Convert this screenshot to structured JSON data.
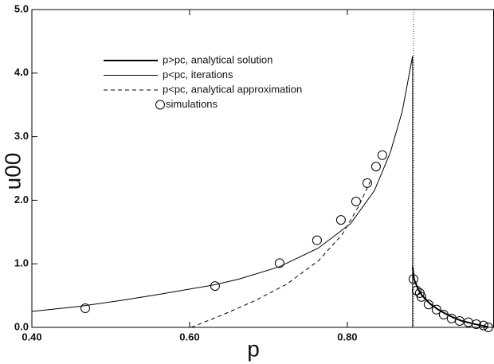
{
  "chart_data": {
    "type": "line",
    "xlabel": "p",
    "ylabel": "u00",
    "xlim": [
      0.4,
      0.986
    ],
    "ylim": [
      0,
      5
    ],
    "xticks": [
      {
        "value": 0.4,
        "label": "0.40"
      },
      {
        "value": 0.6,
        "label": "0.60"
      },
      {
        "value": 0.8,
        "label": "0.80"
      }
    ],
    "yticks": [
      {
        "value": 0,
        "label": "0.0"
      },
      {
        "value": 1,
        "label": "1.0"
      },
      {
        "value": 2,
        "label": "2.0"
      },
      {
        "value": 3,
        "label": "3.0"
      },
      {
        "value": 4,
        "label": "4.0"
      },
      {
        "value": 5,
        "label": "5.0"
      }
    ],
    "vline": 0.884,
    "vline_style": "dotted",
    "series": [
      {
        "name": "p>pc, analytical solution",
        "color": "#000000",
        "style": "solid",
        "width": 2,
        "x": [
          0.8828,
          0.8848,
          0.8899,
          0.8949,
          0.9051,
          0.9152,
          0.9253,
          0.9354,
          0.9455,
          0.9556,
          0.9657,
          0.9778
        ],
        "values": [
          0.95,
          0.75,
          0.6,
          0.5,
          0.37,
          0.28,
          0.21,
          0.15,
          0.1,
          0.07,
          0.04,
          0.01
        ]
      },
      {
        "name": "p<pc, iterations",
        "color": "#000000",
        "style": "solid",
        "width": 1,
        "x": [
          0.4,
          0.4606,
          0.511,
          0.5616,
          0.632,
          0.6626,
          0.7131,
          0.7636,
          0.804,
          0.8343,
          0.8545,
          0.8697,
          0.8828,
          0.8828
        ],
        "values": [
          0.25,
          0.33,
          0.42,
          0.52,
          0.67,
          0.76,
          0.95,
          1.25,
          1.63,
          2.15,
          2.75,
          3.4,
          4.27,
          0
        ]
      },
      {
        "name": "p<pc, analytical approximation",
        "color": "#000000",
        "style": "dashed",
        "width": 1,
        "x": [
          0.602,
          0.6424,
          0.6828,
          0.7232,
          0.7636,
          0.794,
          0.8141,
          0.8293
        ],
        "values": [
          0,
          0.2,
          0.42,
          0.68,
          1.05,
          1.47,
          1.9,
          2.3
        ]
      },
      {
        "name": "simulations",
        "color": "#000000",
        "style": "markers",
        "width": 1,
        "x": [
          0.4677,
          0.6323,
          0.7141,
          0.7616,
          0.7919,
          0.8111,
          0.8253,
          0.8364,
          0.8444,
          0.8838,
          0.8879,
          0.8919,
          0.8939,
          0.903,
          0.9131,
          0.9222,
          0.9323,
          0.9424,
          0.9535,
          0.9636,
          0.9727,
          0.9788
        ],
        "values": [
          0.3,
          0.65,
          1.01,
          1.37,
          1.69,
          1.98,
          2.27,
          2.53,
          2.71,
          0.76,
          0.58,
          0.54,
          0.48,
          0.36,
          0.28,
          0.2,
          0.14,
          0.1,
          0.08,
          0.05,
          0.03,
          0.0
        ]
      }
    ]
  }
}
